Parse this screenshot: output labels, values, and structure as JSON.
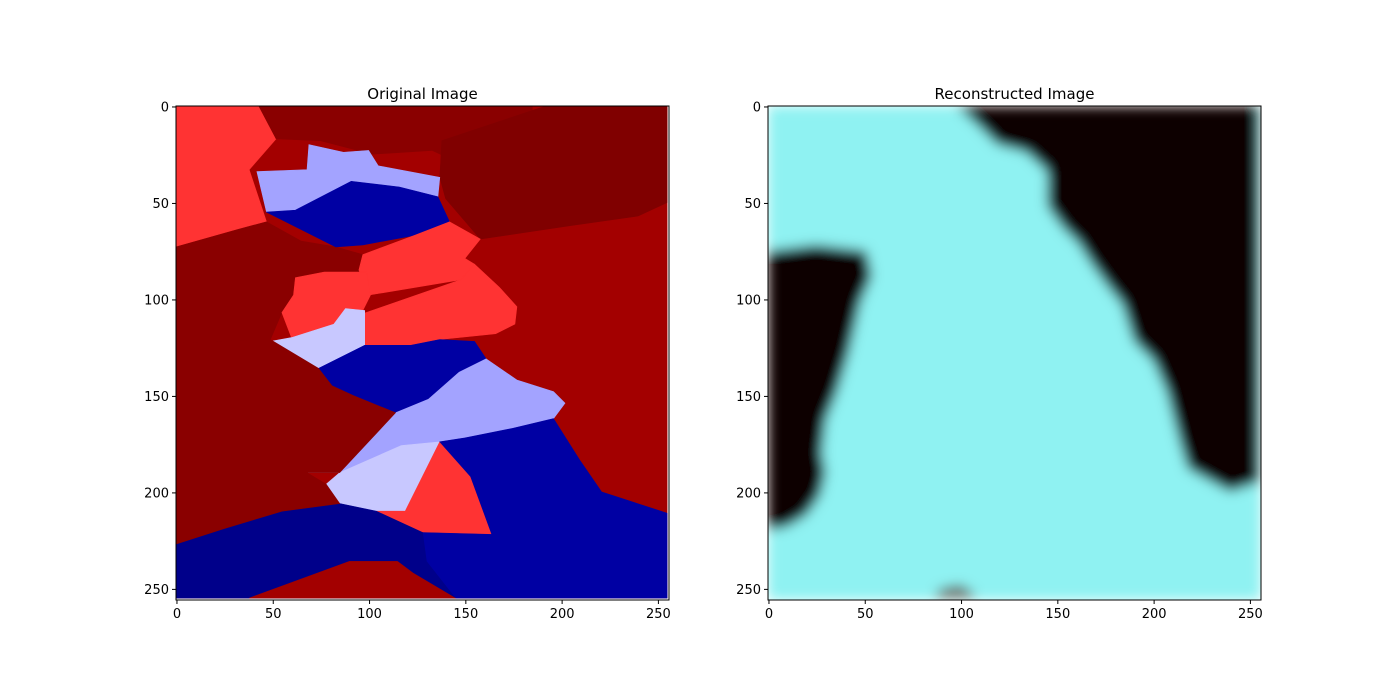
{
  "chart_data": [
    {
      "type": "image",
      "title": "Original Image",
      "image_shape": [
        256,
        256
      ],
      "x_ticks": [
        0,
        50,
        100,
        150,
        200,
        250
      ],
      "y_ticks": [
        0,
        50,
        100,
        150,
        200,
        250
      ],
      "xlim": [
        0,
        255
      ],
      "ylim": [
        255,
        0
      ],
      "colors": {
        "light_red": "#ff3333",
        "red": "#a30000",
        "dark_red": "#800000",
        "deep_red": "#8a0000",
        "light_blue": "#a3a3ff",
        "pale_blue": "#c8c8ff",
        "blue": "#0000a3",
        "dark_blue": "#00008a"
      },
      "regions": [
        {
          "color": "red",
          "points": [
            [
              0,
              0
            ],
            [
              255,
              0
            ],
            [
              255,
              255
            ],
            [
              0,
              255
            ]
          ]
        },
        {
          "color": "light_red",
          "points": [
            [
              0,
              0
            ],
            [
              43,
              0
            ],
            [
              52,
              17
            ],
            [
              38,
              33
            ],
            [
              47,
              60
            ],
            [
              32,
              64
            ],
            [
              0,
              73
            ]
          ]
        },
        {
          "color": "deep_red",
          "points": [
            [
              43,
              0
            ],
            [
              185,
              0
            ],
            [
              185,
              22
            ],
            [
              150,
              31
            ],
            [
              133,
              23
            ],
            [
              102,
              25
            ],
            [
              75,
              18
            ],
            [
              52,
              17
            ]
          ]
        },
        {
          "color": "dark_red",
          "points": [
            [
              138,
              18
            ],
            [
              192,
              0
            ],
            [
              255,
              0
            ],
            [
              255,
              50
            ],
            [
              240,
              57
            ],
            [
              205,
              62
            ],
            [
              158,
              69
            ],
            [
              140,
              48
            ],
            [
              137,
              37
            ]
          ]
        },
        {
          "color": "deep_red",
          "points": [
            [
              0,
              73
            ],
            [
              32,
              64
            ],
            [
              47,
              60
            ],
            [
              65,
              70
            ],
            [
              83,
              73
            ],
            [
              97,
              77
            ],
            [
              97,
              86
            ],
            [
              77,
              86
            ],
            [
              62,
              89
            ],
            [
              61,
              98
            ],
            [
              55,
              107
            ],
            [
              49,
              121
            ],
            [
              0,
              123
            ]
          ]
        },
        {
          "color": "light_blue",
          "points": [
            [
              42,
              34
            ],
            [
              68,
              33
            ],
            [
              69,
              20
            ],
            [
              87,
              24
            ],
            [
              100,
              23
            ],
            [
              105,
              31
            ],
            [
              137,
              37
            ],
            [
              136,
              47
            ],
            [
              116,
              42
            ],
            [
              91,
              39
            ],
            [
              86,
              47
            ],
            [
              62,
              54
            ],
            [
              47,
              55
            ]
          ]
        },
        {
          "color": "blue",
          "points": [
            [
              47,
              55
            ],
            [
              62,
              54
            ],
            [
              91,
              39
            ],
            [
              116,
              42
            ],
            [
              136,
              47
            ],
            [
              142,
              60
            ],
            [
              124,
              67
            ],
            [
              97,
              72
            ],
            [
              83,
              73
            ]
          ]
        },
        {
          "color": "light_red",
          "points": [
            [
              97,
              77
            ],
            [
              124,
              67
            ],
            [
              142,
              60
            ],
            [
              158,
              69
            ],
            [
              150,
              79
            ],
            [
              155,
              82
            ],
            [
              148,
              90
            ],
            [
              100,
              98
            ],
            [
              95,
              85
            ]
          ]
        },
        {
          "color": "light_red",
          "points": [
            [
              62,
              89
            ],
            [
              77,
              86
            ],
            [
              99,
              86
            ],
            [
              101,
              98
            ],
            [
              96,
              108
            ],
            [
              82,
              113
            ],
            [
              60,
              120
            ],
            [
              55,
              107
            ],
            [
              61,
              98
            ]
          ]
        },
        {
          "color": "light_red",
          "points": [
            [
              96,
              108
            ],
            [
              148,
              90
            ],
            [
              155,
              82
            ],
            [
              168,
              94
            ],
            [
              177,
              104
            ],
            [
              176,
              113
            ],
            [
              166,
              118
            ],
            [
              137,
              121
            ],
            [
              122,
              124
            ],
            [
              98,
              124
            ]
          ]
        },
        {
          "color": "pale_blue",
          "points": [
            [
              49,
              122
            ],
            [
              60,
              120
            ],
            [
              82,
              113
            ],
            [
              88,
              105
            ],
            [
              98,
              106
            ],
            [
              98,
              124
            ],
            [
              84,
              134
            ],
            [
              74,
              136
            ]
          ]
        },
        {
          "color": "blue",
          "points": [
            [
              74,
              136
            ],
            [
              98,
              124
            ],
            [
              122,
              124
            ],
            [
              137,
              121
            ],
            [
              155,
              122
            ],
            [
              161,
              131
            ],
            [
              147,
              138
            ],
            [
              131,
              152
            ],
            [
              114,
              159
            ],
            [
              92,
              150
            ],
            [
              81,
              145
            ]
          ]
        },
        {
          "color": "light_blue",
          "points": [
            [
              114,
              159
            ],
            [
              131,
              152
            ],
            [
              147,
              138
            ],
            [
              161,
              131
            ],
            [
              177,
              142
            ],
            [
              196,
              148
            ],
            [
              202,
              154
            ],
            [
              196,
              162
            ],
            [
              175,
              167
            ],
            [
              150,
              172
            ],
            [
              137,
              174
            ],
            [
              117,
              176
            ],
            [
              85,
              190
            ]
          ]
        },
        {
          "color": "pale_blue",
          "points": [
            [
              39,
              170
            ],
            [
              49,
              167
            ],
            [
              63,
              166
            ],
            [
              85,
              160
            ],
            [
              95,
              155
            ],
            [
              98,
              175
            ],
            [
              85,
              190
            ],
            [
              68,
              190
            ],
            [
              50,
              180
            ]
          ]
        },
        {
          "color": "pale_blue",
          "points": [
            [
              85,
              190
            ],
            [
              117,
              176
            ],
            [
              137,
              174
            ],
            [
              119,
              210
            ],
            [
              104,
              210
            ],
            [
              85,
              207
            ],
            [
              78,
              196
            ]
          ]
        },
        {
          "color": "light_red",
          "points": [
            [
              104,
              210
            ],
            [
              119,
              210
            ],
            [
              137,
              174
            ],
            [
              153,
              192
            ],
            [
              164,
              222
            ],
            [
              128,
              221
            ]
          ]
        },
        {
          "color": "blue",
          "points": [
            [
              137,
              174
            ],
            [
              150,
              172
            ],
            [
              175,
              167
            ],
            [
              196,
              162
            ],
            [
              210,
              184
            ],
            [
              221,
              200
            ],
            [
              255,
              211
            ],
            [
              255,
              255
            ],
            [
              145,
              255
            ],
            [
              130,
              236
            ],
            [
              128,
              221
            ],
            [
              164,
              222
            ],
            [
              153,
              192
            ]
          ]
        },
        {
          "color": "dark_blue",
          "points": [
            [
              0,
              227
            ],
            [
              25,
              219
            ],
            [
              55,
              210
            ],
            [
              85,
              206
            ],
            [
              104,
              210
            ],
            [
              128,
              221
            ],
            [
              130,
              236
            ],
            [
              145,
              255
            ],
            [
              0,
              255
            ]
          ]
        },
        {
          "color": "deep_red",
          "points": [
            [
              0,
              123
            ],
            [
              49,
              121
            ],
            [
              74,
              136
            ],
            [
              81,
              145
            ],
            [
              92,
              150
            ],
            [
              114,
              159
            ],
            [
              85,
              190
            ],
            [
              68,
              190
            ],
            [
              78,
              196
            ],
            [
              85,
              206
            ],
            [
              55,
              210
            ],
            [
              25,
              219
            ],
            [
              0,
              227
            ]
          ]
        },
        {
          "color": "red",
          "points": [
            [
              38,
              255
            ],
            [
              90,
              236
            ],
            [
              115,
              236
            ],
            [
              123,
              242
            ],
            [
              145,
              255
            ]
          ]
        }
      ]
    },
    {
      "type": "image",
      "title": "Reconstructed Image",
      "image_shape": [
        256,
        256
      ],
      "x_ticks": [
        0,
        50,
        100,
        150,
        200,
        250
      ],
      "y_ticks": [
        0,
        50,
        100,
        150,
        200,
        250
      ],
      "xlim": [
        0,
        255
      ],
      "ylim": [
        255,
        0
      ],
      "colors": {
        "background": "#8ff2f2",
        "dark": "#0a0505",
        "blur_edge": "#6b6056"
      },
      "regions": [
        {
          "color": "dark",
          "points": [
            [
              98,
              0
            ],
            [
              255,
              0
            ],
            [
              255,
              195
            ],
            [
              240,
              200
            ],
            [
              218,
              188
            ],
            [
              214,
              175
            ],
            [
              207,
              148
            ],
            [
              200,
              132
            ],
            [
              190,
              122
            ],
            [
              184,
              103
            ],
            [
              176,
              93
            ],
            [
              168,
              82
            ],
            [
              161,
              71
            ],
            [
              153,
              63
            ],
            [
              145,
              52
            ],
            [
              145,
              34
            ],
            [
              134,
              24
            ],
            [
              119,
              20
            ],
            [
              109,
              10
            ]
          ]
        },
        {
          "color": "dark",
          "points": [
            [
              0,
              75
            ],
            [
              25,
              72
            ],
            [
              51,
              75
            ],
            [
              54,
              88
            ],
            [
              48,
              102
            ],
            [
              42,
              128
            ],
            [
              36,
              148
            ],
            [
              30,
              163
            ],
            [
              28,
              180
            ],
            [
              30,
              190
            ],
            [
              27,
              202
            ],
            [
              20,
              212
            ],
            [
              10,
              218
            ],
            [
              0,
              220
            ]
          ]
        },
        {
          "color": "blur_edge",
          "points": [
            [
              86,
              255
            ],
            [
              90,
              250
            ],
            [
              100,
              248
            ],
            [
              106,
              252
            ],
            [
              108,
              255
            ]
          ]
        }
      ]
    }
  ]
}
